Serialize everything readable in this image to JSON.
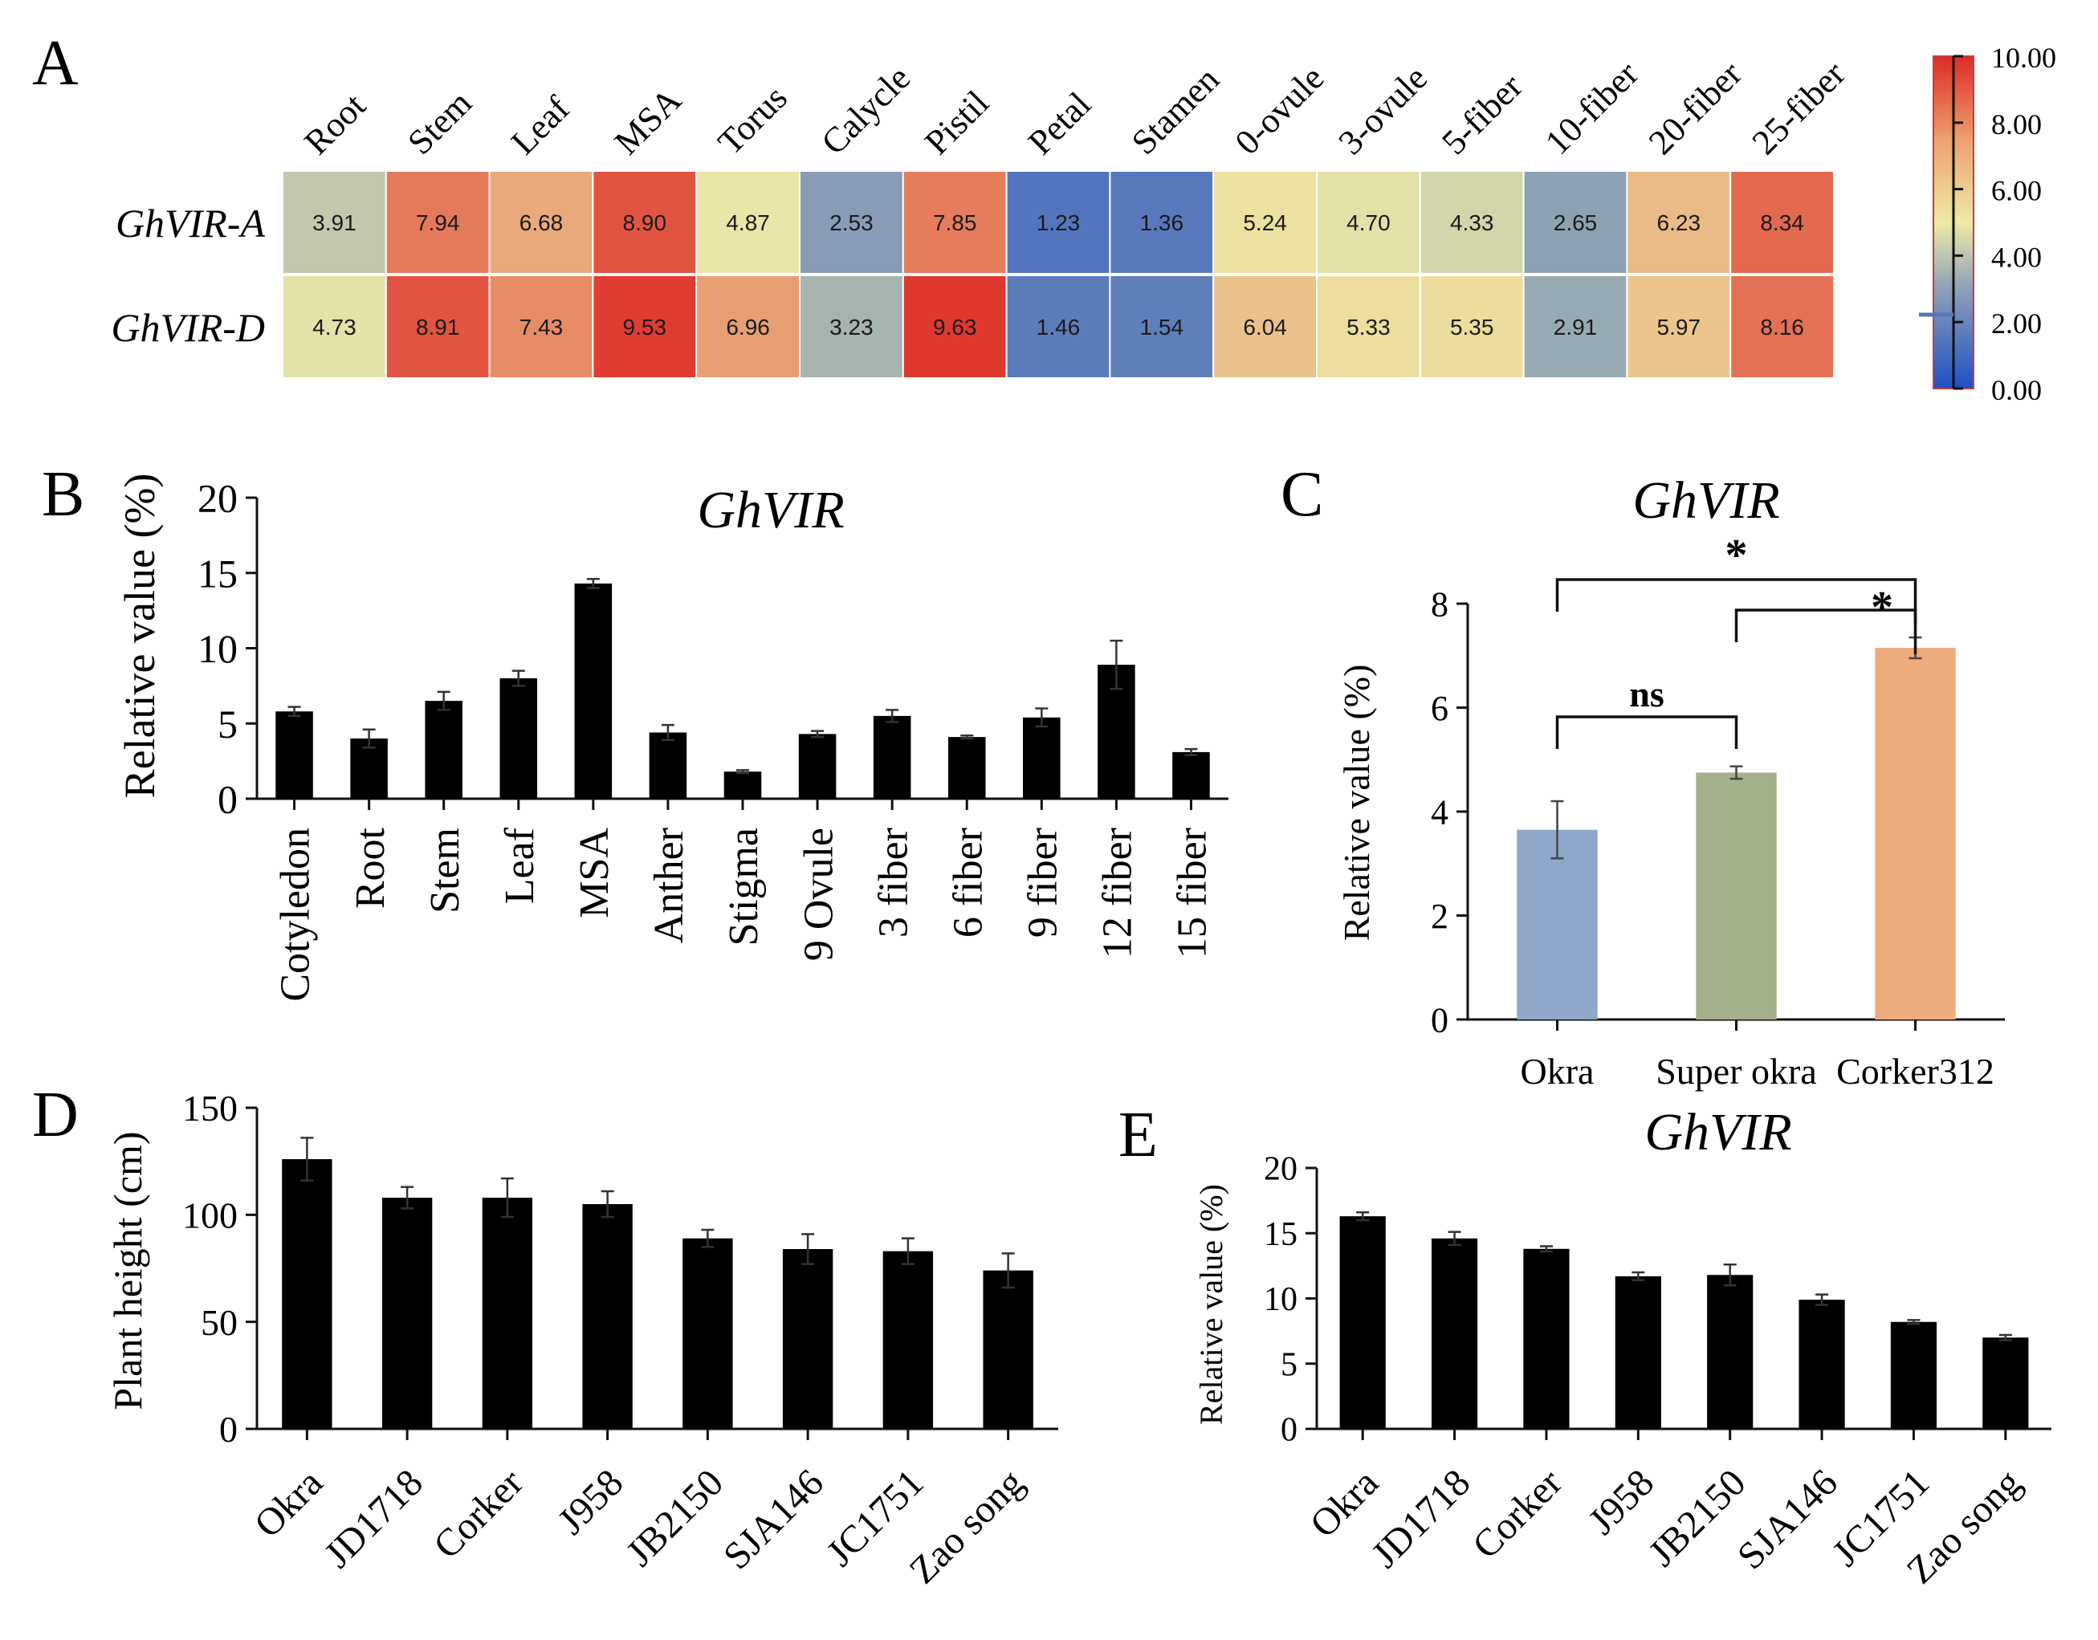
{
  "chart_data": [
    {
      "id": "A",
      "type": "heatmap",
      "panel_label": "A",
      "columns": [
        "Root",
        "Stem",
        "Leaf",
        "MSA",
        "Torus",
        "Calycle",
        "Pistil",
        "Petal",
        "Stamen",
        "0-ovule",
        "3-ovule",
        "5-fiber",
        "10-fiber",
        "20-fiber",
        "25-fiber"
      ],
      "rows": [
        "GhVIR-A",
        "GhVIR-D"
      ],
      "values": [
        [
          3.91,
          7.94,
          6.68,
          8.9,
          4.87,
          2.53,
          7.85,
          1.23,
          1.36,
          5.24,
          4.7,
          4.33,
          2.65,
          6.23,
          8.34
        ],
        [
          4.73,
          8.91,
          7.43,
          9.53,
          6.96,
          3.23,
          9.63,
          1.46,
          1.54,
          6.04,
          5.33,
          5.35,
          2.91,
          5.97,
          8.16
        ]
      ],
      "value_labels": [
        [
          "3.91",
          "7.94",
          "6.68",
          "8.90",
          "4.87",
          "2.53",
          "7.85",
          "1.23",
          "1.36",
          "5.24",
          "4.70",
          "4.33",
          "2.65",
          "6.23",
          "8.34"
        ],
        [
          "4.73",
          "8.91",
          "7.43",
          "9.53",
          "6.96",
          "3.23",
          "9.63",
          "1.46",
          "1.54",
          "6.04",
          "5.33",
          "5.35",
          "2.91",
          "5.97",
          "8.16"
        ]
      ],
      "colorbar": {
        "ticks": [
          "10.00",
          "8.00",
          "6.00",
          "4.00",
          "2.00",
          "0.00"
        ],
        "range": [
          0,
          10
        ]
      },
      "colors": {
        "low": "#1f4fc4",
        "mid": "#eeeaa6",
        "high": "#de2a26"
      }
    },
    {
      "id": "B",
      "type": "bar",
      "panel_label": "B",
      "title": "GhVIR",
      "ylabel": "Relative value (%)",
      "categories": [
        "Cotyledon",
        "Root",
        "Stem",
        "Leaf",
        "MSA",
        "Anther",
        "Stigma",
        "9 Ovule",
        "3 fiber",
        "6 fiber",
        "9 fiber",
        "12 fiber",
        "15 fiber"
      ],
      "values": [
        5.8,
        4.0,
        6.5,
        8.0,
        14.3,
        4.4,
        1.8,
        4.3,
        5.5,
        4.1,
        5.4,
        8.9,
        3.1
      ],
      "errors": [
        0.3,
        0.6,
        0.6,
        0.5,
        0.3,
        0.5,
        0.1,
        0.2,
        0.4,
        0.1,
        0.6,
        1.6,
        0.2
      ],
      "ylim": [
        0,
        20
      ],
      "yticks": [
        "0",
        "5",
        "10",
        "15",
        "20"
      ]
    },
    {
      "id": "C",
      "type": "bar",
      "panel_label": "C",
      "title": "GhVIR",
      "ylabel": "Relative value (%)",
      "categories": [
        "Okra",
        "Super okra",
        "Corker312"
      ],
      "values": [
        3.65,
        4.75,
        7.15
      ],
      "errors": [
        0.55,
        0.12,
        0.2
      ],
      "colors": [
        "#8fa7c8",
        "#a3b28c",
        "#eeab7b"
      ],
      "ylim": [
        0,
        8
      ],
      "yticks": [
        "0",
        "2",
        "4",
        "6",
        "8"
      ],
      "significance": [
        {
          "from": "Okra",
          "to": "Super okra",
          "label": "ns"
        },
        {
          "from": "Super okra",
          "to": "Corker312",
          "label": "*"
        },
        {
          "from": "Okra",
          "to": "Corker312",
          "label": "*"
        }
      ]
    },
    {
      "id": "D",
      "type": "bar",
      "panel_label": "D",
      "ylabel": "Plant height (cm)",
      "categories": [
        "Okra",
        "JD1718",
        "Corker",
        "J958",
        "JB2150",
        "SJA146",
        "JC1751",
        "Zao song"
      ],
      "values": [
        126,
        108,
        108,
        105,
        89,
        84,
        83,
        74
      ],
      "errors": [
        10,
        5,
        9,
        6,
        4,
        7,
        6,
        8
      ],
      "ylim": [
        0,
        150
      ],
      "yticks": [
        "0",
        "50",
        "100",
        "150"
      ]
    },
    {
      "id": "E",
      "type": "bar",
      "panel_label": "E",
      "title": "GhVIR",
      "ylabel": "Relative value (%)",
      "categories": [
        "Okra",
        "JD1718",
        "Corker",
        "J958",
        "JB2150",
        "SJA146",
        "JC1751",
        "Zao song"
      ],
      "values": [
        16.3,
        14.6,
        13.8,
        11.7,
        11.8,
        9.9,
        8.2,
        7.0
      ],
      "errors": [
        0.3,
        0.5,
        0.2,
        0.3,
        0.8,
        0.4,
        0.15,
        0.2
      ],
      "ylim": [
        0,
        20
      ],
      "yticks": [
        "0",
        "5",
        "10",
        "15",
        "20"
      ]
    }
  ]
}
